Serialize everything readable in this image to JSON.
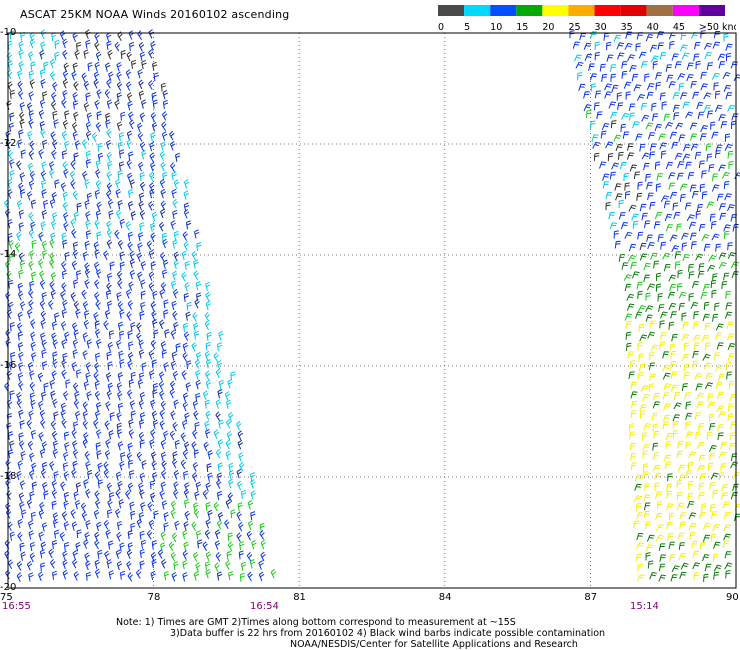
{
  "title": "ASCAT 25KM NOAA Winds 20160102 ascending",
  "legend": {
    "ticks": [
      "0",
      "5",
      "10",
      "15",
      "20",
      "25",
      "30",
      "35",
      "40",
      "45",
      ">50 knots"
    ],
    "colors": [
      "#4a4a4a",
      "#00d8ff",
      "#0050ff",
      "#00aa00",
      "#ffff00",
      "#ffaa00",
      "#ff0000",
      "#e00000",
      "#a07040",
      "#ff00ff",
      "#6000a0"
    ]
  },
  "map": {
    "lon_ticks": [
      "75",
      "78",
      "81",
      "84",
      "87",
      "90"
    ],
    "lat_ticks": [
      "-10",
      "-12",
      "-14",
      "-16",
      "-18",
      "-20"
    ],
    "pass_times": [
      "16:55",
      "16:54",
      "15:14"
    ],
    "swaths": [
      {
        "name": "western-pass",
        "time": "16:55"
      },
      {
        "name": "eastern-pass",
        "time": "15:14"
      }
    ]
  },
  "notes": {
    "line1": "Note: 1) Times are GMT 2)Times along bottom correspond to measurement at ~15S",
    "line2": "3)Data buffer is 22 hrs from 20160102 4) Black wind barbs indicate possible contamination",
    "line3": "NOAA/NESDIS/Center for Satellite Applications and Research"
  }
}
